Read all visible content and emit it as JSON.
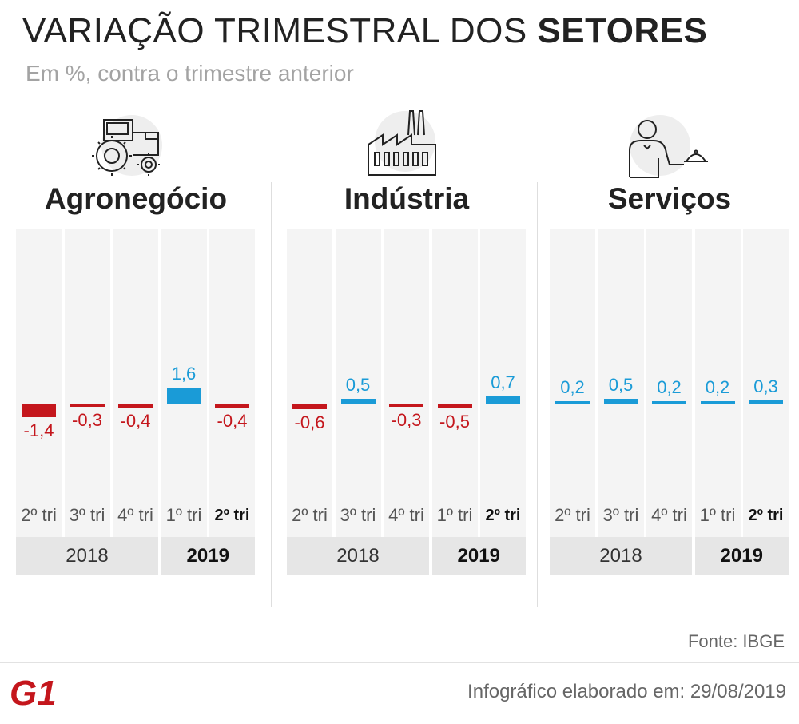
{
  "title_regular": "VARIAÇÃO TRIMESTRAL DOS ",
  "title_bold": "SETORES",
  "subtitle": "Em %, contra o trimestre anterior",
  "source": "Fonte: IBGE",
  "credit": "Infográfico elaborado em: 29/08/2019",
  "logo_text": "G1",
  "colors": {
    "positive": "#1a9bd7",
    "negative": "#c4161c",
    "logo": "#c4161c",
    "column_bg": "#f4f4f4",
    "year_bg": "#e6e6e6"
  },
  "chart_data": [
    {
      "type": "bar",
      "title": "Agronegócio",
      "icon": "tractor-icon",
      "categories": [
        "2º tri",
        "3º tri",
        "4º tri",
        "1º tri",
        "2º tri"
      ],
      "value_labels": [
        "-1,4",
        "-0,3",
        "-0,4",
        "1,6",
        "-0,4"
      ],
      "values": [
        -1.4,
        -0.3,
        -0.4,
        1.6,
        -0.4
      ],
      "years": [
        "2018",
        "2019"
      ]
    },
    {
      "type": "bar",
      "title": "Indústria",
      "icon": "factory-icon",
      "categories": [
        "2º tri",
        "3º tri",
        "4º tri",
        "1º tri",
        "2º tri"
      ],
      "value_labels": [
        "-0,6",
        "0,5",
        "-0,3",
        "-0,5",
        "0,7"
      ],
      "values": [
        -0.6,
        0.5,
        -0.3,
        -0.5,
        0.7
      ],
      "years": [
        "2018",
        "2019"
      ]
    },
    {
      "type": "bar",
      "title": "Serviços",
      "icon": "waiter-icon",
      "categories": [
        "2º tri",
        "3º tri",
        "4º tri",
        "1º tri",
        "2º tri"
      ],
      "value_labels": [
        "0,2",
        "0,5",
        "0,2",
        "0,2",
        "0,3"
      ],
      "values": [
        0.2,
        0.5,
        0.2,
        0.2,
        0.3
      ],
      "years": [
        "2018",
        "2019"
      ]
    }
  ]
}
